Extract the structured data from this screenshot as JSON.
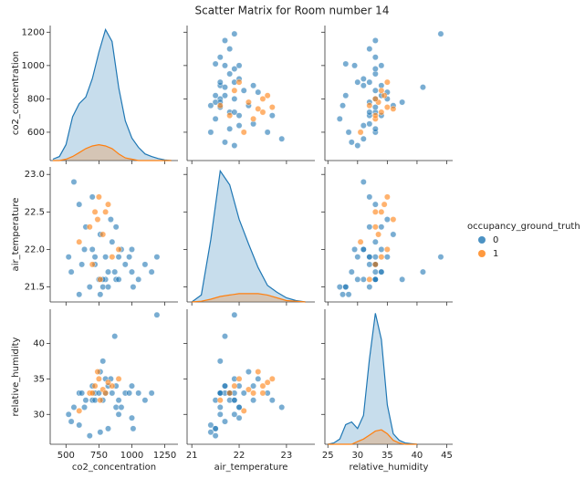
{
  "chart_data": {
    "type": "pairplot",
    "title": "Scatter Matrix for Room number 14",
    "legend_title": "occupancy_ground_truth",
    "variables": [
      {
        "name": "co2_concentration",
        "xlim": [
          380,
          1350
        ],
        "xticks": [
          500,
          750,
          1000,
          1250
        ],
        "ylim": [
          430,
          1240
        ],
        "yticks": [
          600,
          800,
          1000,
          1200
        ]
      },
      {
        "name": "air_temperature",
        "xlim": [
          20.9,
          23.6
        ],
        "xticks": [
          21,
          22,
          23
        ],
        "ylim": [
          21.3,
          23.1
        ],
        "yticks": [
          21.5,
          {
            "value": 22,
            "label": "22.0"
          },
          22.5,
          {
            "value": 23,
            "label": "23.0"
          }
        ]
      },
      {
        "name": "relative_humidity",
        "xlim": [
          24.5,
          46
        ],
        "xticks": [
          25,
          30,
          35,
          40,
          45
        ],
        "ylim": [
          25.8,
          44.8
        ],
        "yticks": [
          30,
          35,
          40
        ]
      }
    ],
    "series": [
      {
        "name": "0",
        "color": "#1f77b4",
        "data": {
          "co2_concentration": [
            560,
            600,
            650,
            700,
            720,
            750,
            780,
            800,
            820,
            850,
            880,
            900,
            950,
            1000,
            1050,
            1100,
            1150,
            520,
            540,
            600,
            680,
            760,
            820,
            900,
            640,
            700,
            760,
            840,
            920,
            980,
            1010,
            620,
            720,
            800,
            880,
            1000,
            1190,
            870,
            780
          ],
          "air_temperature": [
            22.9,
            22.6,
            22.3,
            22.0,
            21.8,
            21.6,
            21.5,
            21.9,
            21.7,
            22.1,
            21.6,
            21.9,
            21.8,
            21.7,
            21.6,
            21.8,
            21.7,
            21.9,
            21.7,
            21.4,
            21.5,
            21.4,
            21.5,
            21.6,
            22.0,
            22.7,
            22.2,
            22.4,
            22.0,
            21.9,
            21.5,
            21.8,
            21.9,
            21.6,
            22.3,
            22.0,
            21.9,
            21.7,
            21.6
          ],
          "relative_humidity": [
            31,
            33,
            32,
            34,
            33,
            33,
            32,
            35,
            34,
            33,
            31,
            32,
            33,
            34,
            33,
            32,
            33,
            30,
            29,
            28.5,
            27,
            27.5,
            28,
            30,
            31,
            32,
            36,
            35,
            31,
            33,
            28,
            33,
            32,
            33,
            34,
            29.5,
            44,
            41,
            37.5
          ]
        },
        "kde": {
          "co2_concentration": {
            "x": [
              400,
              450,
              500,
              550,
              600,
              650,
              700,
              750,
              800,
              850,
              900,
              950,
              1000,
              1050,
              1100,
              1150,
              1200,
              1250,
              1300
            ],
            "density": [
              0.01,
              0.03,
              0.12,
              0.33,
              0.43,
              0.48,
              0.62,
              0.82,
              0.99,
              0.9,
              0.55,
              0.3,
              0.17,
              0.1,
              0.05,
              0.03,
              0.015,
              0.005,
              0
            ]
          },
          "air_temperature": {
            "x": [
              21.0,
              21.2,
              21.4,
              21.6,
              21.8,
              22.0,
              22.2,
              22.4,
              22.6,
              22.8,
              23.0,
              23.2,
              23.4
            ],
            "density": [
              0,
              0.05,
              0.45,
              0.95,
              0.85,
              0.6,
              0.42,
              0.25,
              0.12,
              0.07,
              0.03,
              0.01,
              0
            ]
          },
          "relative_humidity": {
            "x": [
              25,
              26,
              27,
              28,
              29,
              30,
              31,
              32,
              33,
              34,
              35,
              36,
              37,
              38,
              39,
              40
            ],
            "density": [
              0,
              0.01,
              0.04,
              0.15,
              0.17,
              0.12,
              0.22,
              0.65,
              1.0,
              0.8,
              0.3,
              0.08,
              0.03,
              0.01,
              0.005,
              0
            ]
          }
        }
      },
      {
        "name": "1",
        "color": "#ff7f0e",
        "data": {
          "co2_concentration": [
            680,
            720,
            750,
            780,
            800,
            850,
            900,
            760,
            700,
            820,
            740,
            600
          ],
          "air_temperature": [
            22.3,
            22.5,
            22.7,
            22.2,
            22.5,
            21.9,
            22.0,
            21.6,
            21.8,
            22.6,
            22.4,
            22.1
          ],
          "relative_humidity": [
            33,
            34,
            35,
            33.5,
            33,
            34,
            35,
            32,
            33,
            34.5,
            36,
            30.5
          ]
        },
        "kde": {
          "co2_concentration": {
            "x": [
              400,
              450,
              500,
              550,
              600,
              650,
              700,
              750,
              800,
              850,
              900,
              950,
              1000,
              1050,
              1100,
              1150,
              1200,
              1250,
              1300
            ],
            "density": [
              0,
              0,
              0.01,
              0.03,
              0.06,
              0.09,
              0.11,
              0.12,
              0.11,
              0.09,
              0.05,
              0.02,
              0.01,
              0,
              0,
              0,
              0,
              0,
              0
            ]
          },
          "air_temperature": {
            "x": [
              21.0,
              21.2,
              21.4,
              21.6,
              21.8,
              22.0,
              22.2,
              22.4,
              22.6,
              22.8,
              23.0,
              23.2,
              23.4
            ],
            "density": [
              0,
              0.005,
              0.02,
              0.04,
              0.05,
              0.06,
              0.06,
              0.06,
              0.05,
              0.03,
              0.01,
              0.005,
              0
            ]
          },
          "relative_humidity": {
            "x": [
              25,
              26,
              27,
              28,
              29,
              30,
              31,
              32,
              33,
              34,
              35,
              36,
              37,
              38,
              39,
              40
            ],
            "density": [
              0,
              0,
              0,
              0,
              0,
              0.02,
              0.04,
              0.07,
              0.1,
              0.11,
              0.08,
              0.03,
              0.01,
              0,
              0,
              0
            ]
          }
        }
      }
    ]
  }
}
